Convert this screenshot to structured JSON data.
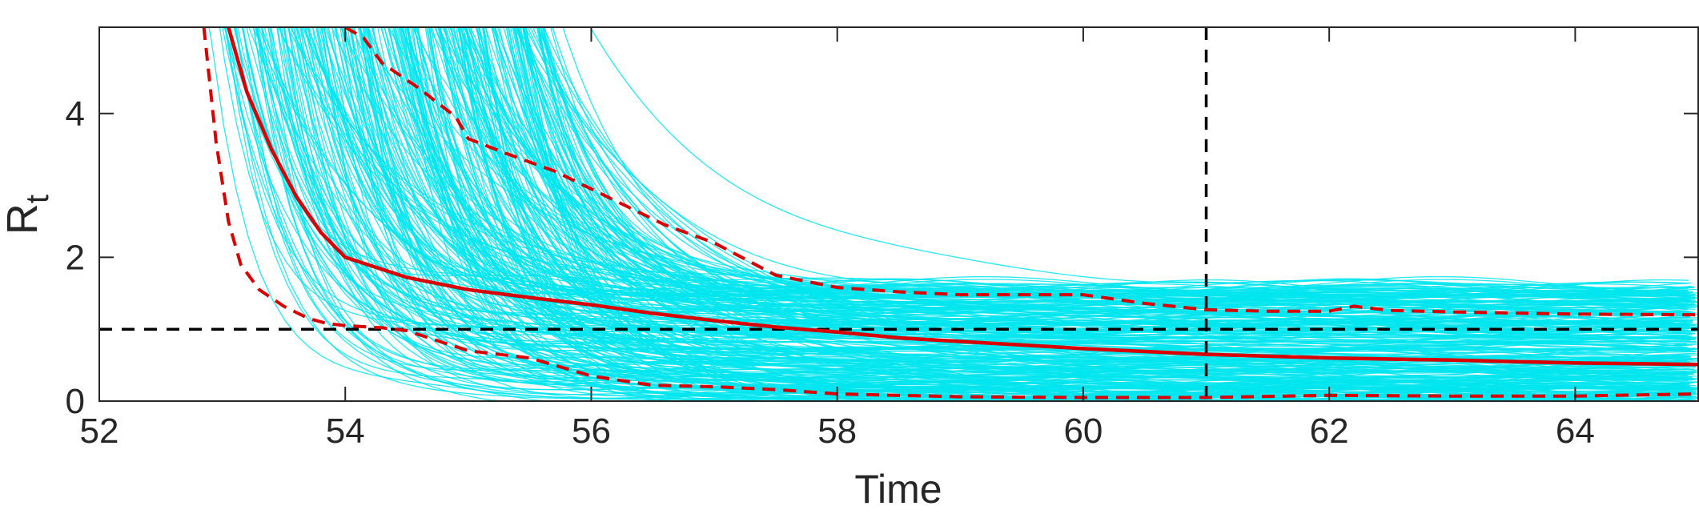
{
  "chart_data": {
    "type": "line",
    "title": "",
    "xlabel": "Time",
    "ylabel": "R",
    "ylabel_subscript": "t",
    "xlim": [
      52,
      65
    ],
    "ylim": [
      0,
      5.2
    ],
    "xticks": [
      52,
      54,
      56,
      58,
      60,
      62,
      64
    ],
    "yticks": [
      0,
      2,
      4
    ],
    "grid": false,
    "box": true,
    "reference_lines": [
      {
        "orientation": "horizontal",
        "value": 1,
        "style": "dashed",
        "color": "#000000"
      },
      {
        "orientation": "vertical",
        "value": 61,
        "style": "dashed",
        "color": "#000000"
      }
    ],
    "ensemble": {
      "description_visible": false,
      "color": "#00e5ee",
      "count": 300,
      "x_range": [
        52.8,
        65
      ]
    },
    "series": [
      {
        "role": "median",
        "color": "#d90000",
        "style": "solid",
        "x": [
          53.05,
          53.2,
          53.4,
          53.6,
          53.8,
          54.0,
          54.5,
          55.0,
          55.5,
          56.0,
          56.5,
          57.0,
          57.5,
          58.0,
          58.5,
          59.0,
          59.5,
          60.0,
          60.5,
          61.0,
          62.0,
          63.0,
          64.0,
          65.0
        ],
        "y": [
          5.2,
          4.3,
          3.5,
          2.85,
          2.35,
          2.0,
          1.72,
          1.55,
          1.44,
          1.34,
          1.22,
          1.12,
          1.03,
          0.96,
          0.88,
          0.83,
          0.78,
          0.73,
          0.69,
          0.65,
          0.6,
          0.57,
          0.53,
          0.51
        ]
      },
      {
        "role": "upper-bound",
        "color": "#d90000",
        "style": "dashed",
        "x": [
          54.0,
          54.15,
          54.3,
          54.6,
          54.9,
          55.0,
          55.3,
          55.7,
          56.0,
          56.3,
          56.6,
          57.0,
          57.5,
          58.0,
          58.5,
          59.0,
          59.5,
          60.0,
          60.5,
          61.0,
          61.5,
          62.0,
          62.2,
          62.5,
          63.0,
          64.0,
          65.0
        ],
        "y": [
          5.2,
          5.05,
          4.7,
          4.35,
          3.95,
          3.65,
          3.45,
          3.2,
          2.95,
          2.7,
          2.45,
          2.2,
          1.75,
          1.58,
          1.52,
          1.48,
          1.48,
          1.48,
          1.36,
          1.27,
          1.25,
          1.25,
          1.32,
          1.26,
          1.24,
          1.21,
          1.2
        ]
      },
      {
        "role": "lower-bound",
        "color": "#d90000",
        "style": "dashed",
        "x": [
          52.85,
          52.95,
          53.05,
          53.15,
          53.3,
          53.5,
          53.7,
          53.85,
          54.0,
          54.3,
          54.5,
          55.0,
          55.5,
          56.0,
          56.5,
          57.0,
          57.5,
          58.0,
          59.0,
          60.0,
          61.0,
          62.0,
          63.0,
          64.0,
          65.0
        ],
        "y": [
          5.2,
          3.6,
          2.5,
          1.9,
          1.55,
          1.32,
          1.15,
          1.08,
          1.05,
          1.02,
          0.98,
          0.7,
          0.6,
          0.35,
          0.22,
          0.2,
          0.16,
          0.1,
          0.06,
          0.05,
          0.05,
          0.08,
          0.07,
          0.07,
          0.1
        ]
      }
    ]
  }
}
